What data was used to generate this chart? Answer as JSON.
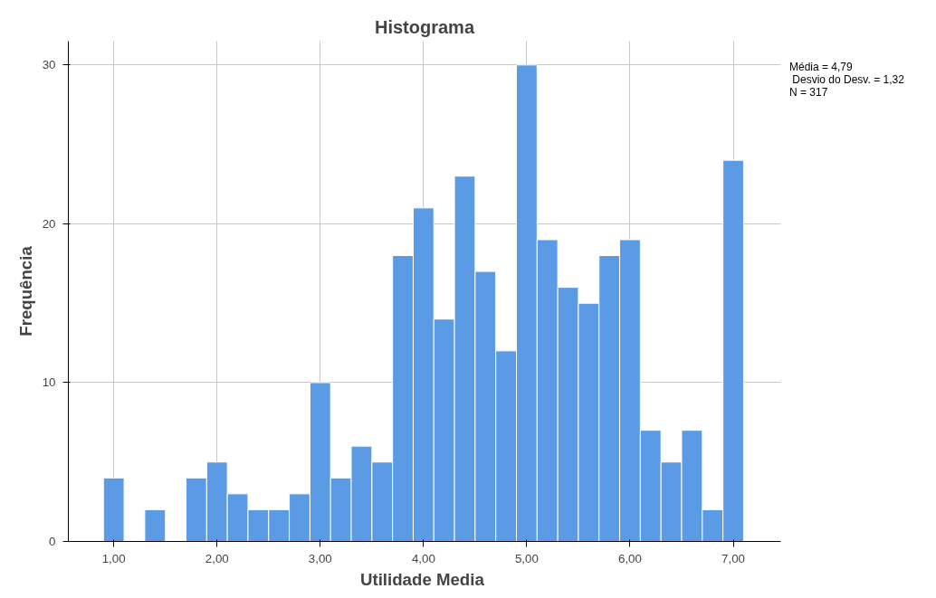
{
  "chart_data": {
    "type": "histogram",
    "title": "Histograma",
    "xlabel": "Utilidade  Media",
    "ylabel": "Frequência",
    "bins": [
      0.9,
      1.1,
      1.3,
      1.5,
      1.7,
      1.9,
      2.1,
      2.3,
      2.5,
      2.7,
      2.9,
      3.1,
      3.3,
      3.5,
      3.7,
      3.9,
      4.1,
      4.3,
      4.5,
      4.7,
      4.9,
      5.1,
      5.3,
      5.5,
      5.7,
      5.9,
      6.1,
      6.3,
      6.5,
      6.7,
      6.9,
      7.1
    ],
    "values": [
      4,
      0,
      2,
      0,
      4,
      5,
      3,
      2,
      2,
      3,
      10,
      4,
      6,
      5,
      18,
      21,
      14,
      23,
      17,
      12,
      30,
      19,
      16,
      15,
      18,
      19,
      7,
      5,
      7,
      2,
      24
    ],
    "color": "#5b9be6",
    "xlim": [
      0.56,
      7.46
    ],
    "ylim": [
      0,
      31.5
    ],
    "xticks": [
      {
        "value": 1,
        "label": "1,00"
      },
      {
        "value": 2,
        "label": "2,00"
      },
      {
        "value": 3,
        "label": "3,00"
      },
      {
        "value": 4,
        "label": "4,00"
      },
      {
        "value": 5,
        "label": "5,00"
      },
      {
        "value": 6,
        "label": "6,00"
      },
      {
        "value": 7,
        "label": "7,00"
      }
    ],
    "yticks": [
      0,
      10,
      20,
      30
    ],
    "grid": true,
    "annotations": [
      "Média = 4,79",
      " Desvio do Desv. = 1,32",
      "N = 317"
    ]
  }
}
